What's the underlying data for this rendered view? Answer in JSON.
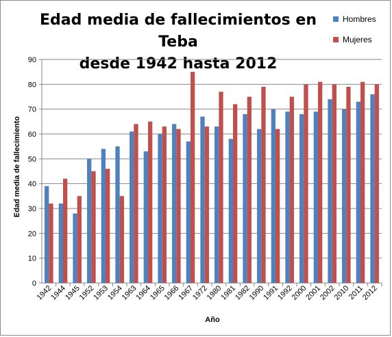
{
  "chart_data": {
    "type": "bar",
    "title_line1": "Edad media de fallecimientos en Teba",
    "title_line2": "desde 1942 hasta 2012",
    "xlabel": "Año",
    "ylabel": "Edad media de fallecimiento",
    "ylim": [
      0,
      90
    ],
    "yticks": [
      0,
      10,
      20,
      30,
      40,
      50,
      60,
      70,
      80,
      90
    ],
    "grid": true,
    "legend_position": "top-right",
    "categories": [
      "1942",
      "1944",
      "1945",
      "1952",
      "1953",
      "1954",
      "1963",
      "1964",
      "1965",
      "1966",
      "1967",
      "1972",
      "1980",
      "1981",
      "1982",
      "1990",
      "1991",
      "1992",
      "2000",
      "2001",
      "2002",
      "2010",
      "2011",
      "2012"
    ],
    "series": [
      {
        "name": "Hombres",
        "color": "#4f81bd",
        "values": [
          39,
          32,
          28,
          50,
          54,
          55,
          61,
          53,
          60,
          64,
          57,
          67,
          63,
          58,
          68,
          62,
          70,
          69,
          68,
          69,
          74,
          70,
          73,
          76
        ]
      },
      {
        "name": "Mujeres",
        "color": "#c0504d",
        "values": [
          32,
          42,
          35,
          45,
          46,
          35,
          64,
          65,
          63,
          62,
          85,
          63,
          77,
          72,
          75,
          79,
          62,
          75,
          80,
          81,
          80,
          79,
          81,
          80
        ]
      }
    ]
  }
}
